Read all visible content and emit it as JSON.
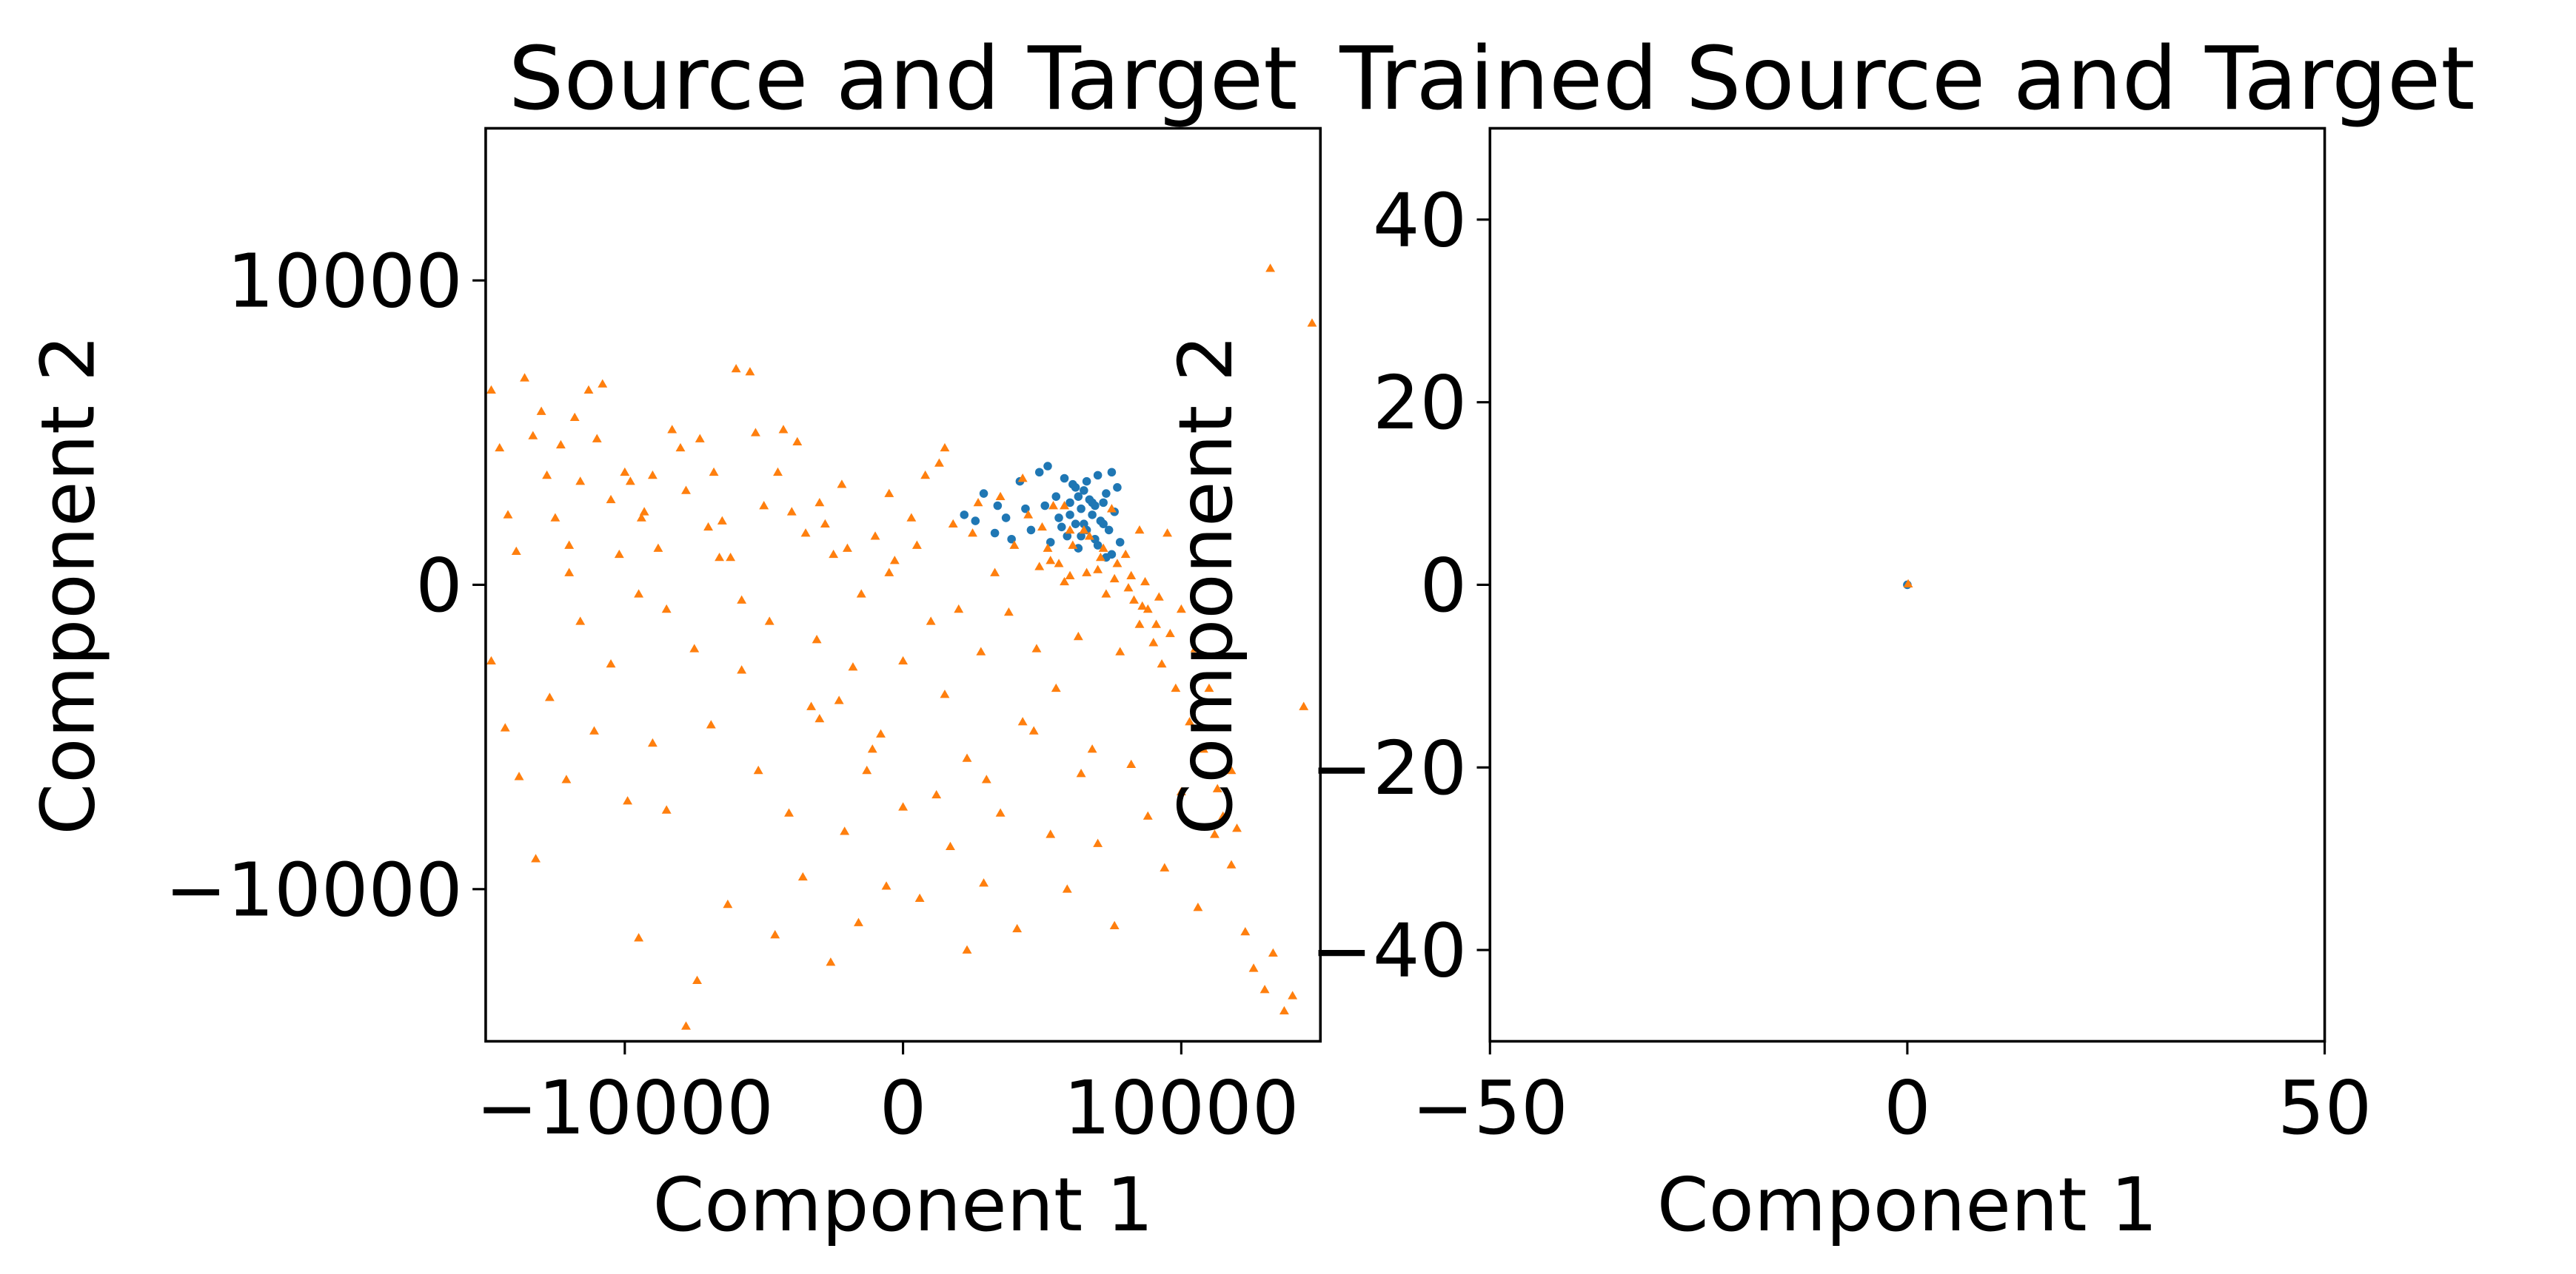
{
  "chart_data": [
    {
      "type": "scatter",
      "title": "Source and Target",
      "xlabel": "Component 1",
      "ylabel": "Component 2",
      "xlim": [
        -15000,
        15000
      ],
      "ylim": [
        -15000,
        15000
      ],
      "xticks": [
        -10000,
        0,
        10000
      ],
      "yticks": [
        -10000,
        0,
        10000
      ],
      "xtick_labels": [
        "−10000",
        "0",
        "10000"
      ],
      "ytick_labels": [
        "−10000",
        "0",
        "10000"
      ],
      "grid": false,
      "series": [
        {
          "marker": "circle",
          "color": "#1f77b4",
          "points": [
            [
              2200,
              2300
            ],
            [
              2600,
              2100
            ],
            [
              2900,
              3000
            ],
            [
              3300,
              1700
            ],
            [
              3400,
              2600
            ],
            [
              3700,
              2200
            ],
            [
              3900,
              1500
            ],
            [
              4200,
              3400
            ],
            [
              4400,
              2500
            ],
            [
              4600,
              1800
            ],
            [
              4900,
              3700
            ],
            [
              5100,
              2600
            ],
            [
              5200,
              3900
            ],
            [
              5300,
              1400
            ],
            [
              5500,
              2900
            ],
            [
              5600,
              2200
            ],
            [
              5800,
              3500
            ],
            [
              5900,
              1600
            ],
            [
              6000,
              2700
            ],
            [
              6100,
              3300
            ],
            [
              6200,
              2000
            ],
            [
              6300,
              1200
            ],
            [
              6400,
              2500
            ],
            [
              6500,
              3100
            ],
            [
              6600,
              1800
            ],
            [
              6700,
              2800
            ],
            [
              6800,
              2300
            ],
            [
              6900,
              1500
            ],
            [
              7000,
              3600
            ],
            [
              7100,
              2100
            ],
            [
              7200,
              2700
            ],
            [
              7300,
              900
            ],
            [
              7400,
              1800
            ],
            [
              7500,
              3700
            ],
            [
              7600,
              2400
            ],
            [
              7700,
              3200
            ],
            [
              7800,
              1400
            ],
            [
              6000,
              2300
            ],
            [
              6500,
              2000
            ],
            [
              6800,
              2700
            ],
            [
              6300,
              2900
            ],
            [
              7000,
              1300
            ],
            [
              7200,
              2000
            ],
            [
              6600,
              3400
            ],
            [
              6400,
              1600
            ],
            [
              5700,
              1900
            ],
            [
              7500,
              1000
            ],
            [
              7300,
              3000
            ],
            [
              6900,
              2600
            ],
            [
              6200,
              3200
            ]
          ]
        },
        {
          "marker": "triangle",
          "color": "#ff7f0e",
          "points": [
            [
              -14800,
              6400
            ],
            [
              -14500,
              4500
            ],
            [
              -14200,
              2300
            ],
            [
              -13900,
              1100
            ],
            [
              -13600,
              6800
            ],
            [
              -13300,
              4900
            ],
            [
              -13000,
              5700
            ],
            [
              -12800,
              3600
            ],
            [
              -12500,
              2200
            ],
            [
              -12300,
              4600
            ],
            [
              -12000,
              1300
            ],
            [
              -11800,
              5500
            ],
            [
              -11600,
              3400
            ],
            [
              -11300,
              6400
            ],
            [
              -11000,
              4800
            ],
            [
              -10800,
              6600
            ],
            [
              -10500,
              2800
            ],
            [
              -10200,
              1000
            ],
            [
              -10000,
              3700
            ],
            [
              -9800,
              3400
            ],
            [
              -9500,
              -300
            ],
            [
              -9300,
              2400
            ],
            [
              -9000,
              3600
            ],
            [
              -8800,
              1200
            ],
            [
              -8500,
              -800
            ],
            [
              -8300,
              5100
            ],
            [
              -8000,
              4500
            ],
            [
              -7800,
              3100
            ],
            [
              -7500,
              -2100
            ],
            [
              -7300,
              4800
            ],
            [
              -7000,
              1900
            ],
            [
              -6800,
              3700
            ],
            [
              -6500,
              2100
            ],
            [
              -6200,
              900
            ],
            [
              -6000,
              7100
            ],
            [
              -5800,
              -500
            ],
            [
              -5500,
              7000
            ],
            [
              -5300,
              5000
            ],
            [
              -5000,
              2600
            ],
            [
              -4800,
              -1200
            ],
            [
              -4500,
              3700
            ],
            [
              -4300,
              5100
            ],
            [
              -4000,
              2400
            ],
            [
              -3800,
              4700
            ],
            [
              -3500,
              1700
            ],
            [
              -3300,
              -4000
            ],
            [
              -3000,
              -4400
            ],
            [
              -2800,
              2000
            ],
            [
              -2500,
              1000
            ],
            [
              -2300,
              -3800
            ],
            [
              -2000,
              1200
            ],
            [
              -1800,
              -2700
            ],
            [
              -1500,
              -300
            ],
            [
              -1300,
              -6100
            ],
            [
              -1000,
              1600
            ],
            [
              -800,
              -4900
            ],
            [
              -500,
              400
            ],
            [
              -300,
              800
            ],
            [
              0,
              -2500
            ],
            [
              300,
              2200
            ],
            [
              500,
              1300
            ],
            [
              800,
              3600
            ],
            [
              1000,
              -1200
            ],
            [
              1300,
              4000
            ],
            [
              1500,
              -3600
            ],
            [
              1800,
              2000
            ],
            [
              2000,
              -800
            ],
            [
              2300,
              -5700
            ],
            [
              2500,
              1700
            ],
            [
              2800,
              -2200
            ],
            [
              3000,
              -6400
            ],
            [
              3300,
              400
            ],
            [
              3500,
              2900
            ],
            [
              3800,
              -900
            ],
            [
              4000,
              1300
            ],
            [
              4300,
              -4500
            ],
            [
              4500,
              2300
            ],
            [
              4800,
              -2100
            ],
            [
              5000,
              1900
            ],
            [
              5300,
              800
            ],
            [
              5500,
              -3400
            ],
            [
              5800,
              2600
            ],
            [
              6000,
              300
            ],
            [
              6300,
              -1700
            ],
            [
              6500,
              1800
            ],
            [
              6800,
              -5400
            ],
            [
              7000,
              500
            ],
            [
              7300,
              -300
            ],
            [
              7500,
              2500
            ],
            [
              7800,
              -2200
            ],
            [
              8000,
              1000
            ],
            [
              8300,
              -500
            ],
            [
              8500,
              -1300
            ],
            [
              8800,
              -800
            ],
            [
              9000,
              -1900
            ],
            [
              9300,
              -2600
            ],
            [
              9500,
              1700
            ],
            [
              9800,
              -3400
            ],
            [
              10000,
              -800
            ],
            [
              10300,
              -4500
            ],
            [
              10500,
              -2100
            ],
            [
              10800,
              -5400
            ],
            [
              11000,
              -3400
            ],
            [
              11300,
              -6700
            ],
            [
              11500,
              -7600
            ],
            [
              11800,
              -9200
            ],
            [
              12000,
              -8000
            ],
            [
              12300,
              -11400
            ],
            [
              12600,
              -12600
            ],
            [
              13000,
              -13300
            ],
            [
              13300,
              -12100
            ],
            [
              13700,
              -14000
            ],
            [
              14000,
              -13500
            ],
            [
              14400,
              -4000
            ],
            [
              14700,
              8600
            ],
            [
              13200,
              10400
            ],
            [
              -14800,
              -2500
            ],
            [
              -14300,
              -4700
            ],
            [
              -13800,
              -6300
            ],
            [
              -13200,
              -9000
            ],
            [
              -12700,
              -3700
            ],
            [
              -12100,
              -6400
            ],
            [
              -11600,
              -1200
            ],
            [
              -11100,
              -4800
            ],
            [
              -10500,
              -2600
            ],
            [
              -9900,
              -7100
            ],
            [
              -9500,
              -11600
            ],
            [
              -9000,
              -5200
            ],
            [
              -8500,
              -7400
            ],
            [
              -7800,
              -14500
            ],
            [
              -7400,
              -13000
            ],
            [
              -6900,
              -4600
            ],
            [
              -6300,
              -10500
            ],
            [
              -5800,
              -2800
            ],
            [
              -5200,
              -6100
            ],
            [
              -4600,
              -11500
            ],
            [
              -4100,
              -7500
            ],
            [
              -3600,
              -9600
            ],
            [
              -3100,
              -1800
            ],
            [
              -2600,
              -12400
            ],
            [
              -2100,
              -8100
            ],
            [
              -1600,
              -11100
            ],
            [
              -1100,
              -5400
            ],
            [
              -600,
              -9900
            ],
            [
              0,
              -7300
            ],
            [
              600,
              -10300
            ],
            [
              1200,
              -6900
            ],
            [
              1700,
              -8600
            ],
            [
              2300,
              -12000
            ],
            [
              2900,
              -9800
            ],
            [
              3500,
              -7500
            ],
            [
              4100,
              -11300
            ],
            [
              4700,
              -4800
            ],
            [
              5300,
              -8200
            ],
            [
              5900,
              -10000
            ],
            [
              6400,
              -6200
            ],
            [
              7000,
              -8500
            ],
            [
              7600,
              -11200
            ],
            [
              8200,
              -5900
            ],
            [
              8800,
              -7600
            ],
            [
              9400,
              -9300
            ],
            [
              10000,
              -6800
            ],
            [
              10600,
              -10600
            ],
            [
              11200,
              -8200
            ],
            [
              11800,
              -6100
            ],
            [
              5200,
              1200
            ],
            [
              5600,
              700
            ],
            [
              6100,
              1300
            ],
            [
              6600,
              400
            ],
            [
              7100,
              900
            ],
            [
              7600,
              200
            ],
            [
              8100,
              -100
            ],
            [
              8600,
              -700
            ],
            [
              9100,
              -1300
            ],
            [
              9600,
              -1600
            ],
            [
              5400,
              2600
            ],
            [
              6000,
              1800
            ],
            [
              6700,
              1600
            ],
            [
              7200,
              1200
            ],
            [
              7700,
              700
            ],
            [
              8200,
              300
            ],
            [
              8700,
              100
            ],
            [
              9200,
              -400
            ],
            [
              4900,
              600
            ],
            [
              5800,
              100
            ],
            [
              -3000,
              2700
            ],
            [
              -6600,
              900
            ],
            [
              -9400,
              2200
            ],
            [
              -12000,
              400
            ],
            [
              1500,
              4500
            ],
            [
              -500,
              3000
            ],
            [
              -2200,
              3300
            ],
            [
              2700,
              2700
            ],
            [
              4300,
              3500
            ],
            [
              8500,
              1800
            ]
          ]
        }
      ]
    },
    {
      "type": "scatter",
      "title": "Trained Source and Target",
      "xlabel": "Component 1",
      "ylabel": "Component 2",
      "xlim": [
        -50,
        50
      ],
      "ylim": [
        -50,
        50
      ],
      "xticks": [
        -50,
        0,
        50
      ],
      "yticks": [
        -40,
        -20,
        0,
        20,
        40
      ],
      "xtick_labels": [
        "−50",
        "0",
        "50"
      ],
      "ytick_labels": [
        "−40",
        "−20",
        "0",
        "20",
        "40"
      ],
      "grid": false,
      "series": [
        {
          "marker": "circle",
          "color": "#1f77b4",
          "points": [
            [
              0,
              0
            ]
          ]
        },
        {
          "marker": "triangle",
          "color": "#ff7f0e",
          "points": [
            [
              0.1,
              0.1
            ]
          ]
        }
      ]
    }
  ]
}
